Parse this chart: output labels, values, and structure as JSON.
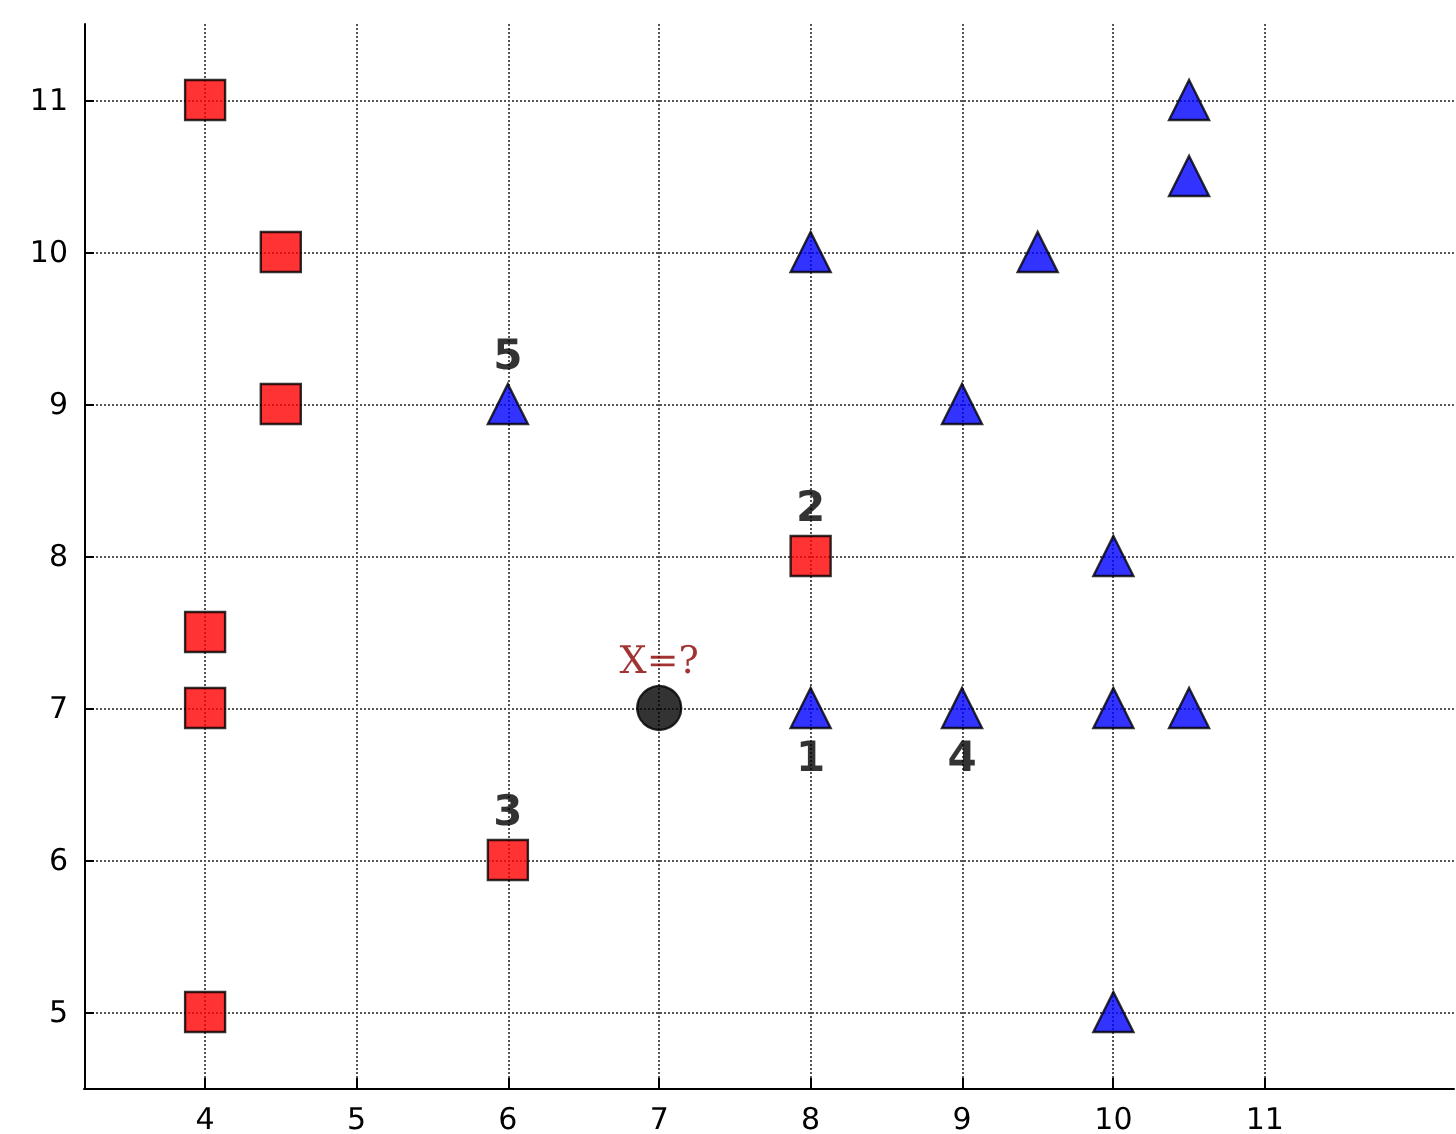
{
  "chart_data": {
    "type": "scatter",
    "series": [
      {
        "color": "#ff0000",
        "marker": "square",
        "x": [
          4,
          4.5,
          4.5,
          4,
          4,
          4,
          6,
          8
        ],
        "values": [
          11,
          10,
          9,
          7.5,
          7,
          5,
          6,
          8
        ]
      },
      {
        "color": "#0000ff",
        "marker": "triangle",
        "x": [
          10.5,
          10.5,
          8,
          9.5,
          6,
          9,
          10,
          8,
          9,
          10,
          10.5,
          10
        ],
        "values": [
          11,
          10.5,
          10,
          10,
          9,
          9,
          8,
          7,
          7,
          7,
          7,
          5
        ]
      },
      {
        "color": "#000000",
        "marker": "circle",
        "x": [
          7
        ],
        "values": [
          7
        ]
      }
    ],
    "annotations": [
      {
        "text": "5",
        "x": 6,
        "y": 9
      },
      {
        "text": "2",
        "x": 8,
        "y": 8
      },
      {
        "text": "3",
        "x": 6,
        "y": 6
      },
      {
        "text": "1",
        "x": 8,
        "y": 7
      },
      {
        "text": "4",
        "x": 9,
        "y": 7
      },
      {
        "text": "X=?",
        "x": 7,
        "y": 7
      }
    ],
    "xlim": [
      3.2,
      12.25
    ],
    "xticks": [
      4,
      5,
      6,
      7,
      8,
      9,
      10,
      11
    ],
    "ylim": [
      4.5,
      11.5
    ],
    "yticks": [
      5,
      6,
      7,
      8,
      9,
      10,
      11
    ],
    "grid": true
  }
}
